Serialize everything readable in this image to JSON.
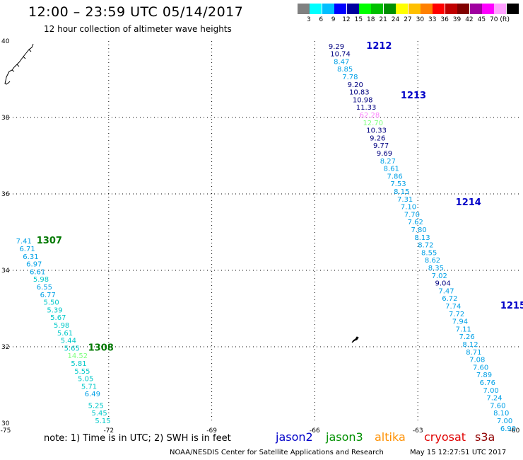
{
  "header": {
    "title": "12:00 – 23:59 UTC 05/14/2017",
    "subtitle": "12 hour collection of altimeter wave heights"
  },
  "scale": {
    "colors": [
      "#808080",
      "#00ffff",
      "#00bfff",
      "#0000ff",
      "#0000a0",
      "#00ff00",
      "#00c000",
      "#009000",
      "#ffff00",
      "#ffc000",
      "#ff8000",
      "#ff0000",
      "#c00000",
      "#800000",
      "#a000a0",
      "#ff00ff",
      "#ffa0ff",
      "#000000"
    ],
    "labels": [
      "3",
      "6",
      "9",
      "12",
      "15",
      "18",
      "21",
      "24",
      "27",
      "30",
      "33",
      "36",
      "39",
      "42",
      "45",
      "70",
      "(ft)"
    ]
  },
  "axes": {
    "x_ticks": [
      "-75",
      "-72",
      "-69",
      "-66",
      "-63",
      "-60"
    ],
    "y_ticks": [
      "40",
      "38",
      "36",
      "34",
      "32",
      "30"
    ]
  },
  "tracks": [
    {
      "label": "1212",
      "color": "#0000c8",
      "lon": -64.5,
      "lat": 39.8
    },
    {
      "label": "1213",
      "color": "#0000c8",
      "lon": -63.5,
      "lat": 38.5
    },
    {
      "label": "1214",
      "color": "#0000c8",
      "lon": -61.9,
      "lat": 35.7
    },
    {
      "label": "1215",
      "color": "#0000c8",
      "lon": -60.6,
      "lat": 33.0
    },
    {
      "label": "1307",
      "color": "#007800",
      "lon": -74.1,
      "lat": 34.7
    },
    {
      "label": "1308",
      "color": "#007800",
      "lon": -72.6,
      "lat": 31.9
    }
  ],
  "wave_heights": [
    {
      "v": "9.29",
      "color": "#000080",
      "lon": -65.6,
      "lat": 39.8
    },
    {
      "v": "10.74",
      "color": "#000080",
      "lon": -65.55,
      "lat": 39.6
    },
    {
      "v": "8.47",
      "color": "#00a0e6",
      "lon": -65.45,
      "lat": 39.4
    },
    {
      "v": "8.85",
      "color": "#00a0e6",
      "lon": -65.35,
      "lat": 39.2
    },
    {
      "v": "7.78",
      "color": "#00a0e6",
      "lon": -65.2,
      "lat": 39.0
    },
    {
      "v": "9.20",
      "color": "#000080",
      "lon": -65.05,
      "lat": 38.8
    },
    {
      "v": "10.83",
      "color": "#000080",
      "lon": -65.0,
      "lat": 38.6
    },
    {
      "v": "10.98",
      "color": "#000080",
      "lon": -64.9,
      "lat": 38.4
    },
    {
      "v": "11.33",
      "color": "#000080",
      "lon": -64.8,
      "lat": 38.2
    },
    {
      "v": "62.28",
      "color": "#ff80ff",
      "lon": -64.7,
      "lat": 38.0
    },
    {
      "v": "12.70",
      "color": "#80ff80",
      "lon": -64.6,
      "lat": 37.8
    },
    {
      "v": "10.33",
      "color": "#000080",
      "lon": -64.5,
      "lat": 37.6
    },
    {
      "v": "9.26",
      "color": "#000080",
      "lon": -64.4,
      "lat": 37.4
    },
    {
      "v": "9.77",
      "color": "#000080",
      "lon": -64.3,
      "lat": 37.2
    },
    {
      "v": "9.69",
      "color": "#000080",
      "lon": -64.2,
      "lat": 37.0
    },
    {
      "v": "8.27",
      "color": "#00a0e6",
      "lon": -64.1,
      "lat": 36.8
    },
    {
      "v": "8.61",
      "color": "#00a0e6",
      "lon": -64.0,
      "lat": 36.6
    },
    {
      "v": "7.86",
      "color": "#00a0e6",
      "lon": -63.9,
      "lat": 36.4
    },
    {
      "v": "7.53",
      "color": "#00a0e6",
      "lon": -63.8,
      "lat": 36.2
    },
    {
      "v": "8.15",
      "color": "#00a0e6",
      "lon": -63.7,
      "lat": 36.0
    },
    {
      "v": "7.31",
      "color": "#00a0e6",
      "lon": -63.6,
      "lat": 35.8
    },
    {
      "v": "7.10",
      "color": "#00a0e6",
      "lon": -63.5,
      "lat": 35.6
    },
    {
      "v": "7.70",
      "color": "#00a0e6",
      "lon": -63.4,
      "lat": 35.4
    },
    {
      "v": "7.62",
      "color": "#00a0e6",
      "lon": -63.3,
      "lat": 35.2
    },
    {
      "v": "7.80",
      "color": "#00a0e6",
      "lon": -63.2,
      "lat": 35.0
    },
    {
      "v": "8.13",
      "color": "#00a0e6",
      "lon": -63.1,
      "lat": 34.8
    },
    {
      "v": "8.72",
      "color": "#00a0e6",
      "lon": -63.0,
      "lat": 34.6
    },
    {
      "v": "8.55",
      "color": "#00a0e6",
      "lon": -62.9,
      "lat": 34.4
    },
    {
      "v": "8.62",
      "color": "#00a0e6",
      "lon": -62.8,
      "lat": 34.2
    },
    {
      "v": "8.35",
      "color": "#00a0e6",
      "lon": -62.7,
      "lat": 34.0
    },
    {
      "v": "7.02",
      "color": "#00a0e6",
      "lon": -62.6,
      "lat": 33.8
    },
    {
      "v": "9.04",
      "color": "#000080",
      "lon": -62.5,
      "lat": 33.6
    },
    {
      "v": "7.47",
      "color": "#00a0e6",
      "lon": -62.4,
      "lat": 33.4
    },
    {
      "v": "6.72",
      "color": "#00a0e6",
      "lon": -62.3,
      "lat": 33.2
    },
    {
      "v": "7.74",
      "color": "#00a0e6",
      "lon": -62.2,
      "lat": 33.0
    },
    {
      "v": "7.72",
      "color": "#00a0e6",
      "lon": -62.1,
      "lat": 32.8
    },
    {
      "v": "7.94",
      "color": "#00a0e6",
      "lon": -62.0,
      "lat": 32.6
    },
    {
      "v": "7.11",
      "color": "#00a0e6",
      "lon": -61.9,
      "lat": 32.4
    },
    {
      "v": "7.26",
      "color": "#00a0e6",
      "lon": -61.8,
      "lat": 32.2
    },
    {
      "v": "8.12",
      "color": "#00a0e6",
      "lon": -61.7,
      "lat": 32.0
    },
    {
      "v": "8.71",
      "color": "#00a0e6",
      "lon": -61.6,
      "lat": 31.8
    },
    {
      "v": "7.08",
      "color": "#00a0e6",
      "lon": -61.5,
      "lat": 31.6
    },
    {
      "v": "7.60",
      "color": "#00a0e6",
      "lon": -61.4,
      "lat": 31.4
    },
    {
      "v": "7.89",
      "color": "#00a0e6",
      "lon": -61.3,
      "lat": 31.2
    },
    {
      "v": "6.76",
      "color": "#00a0e6",
      "lon": -61.2,
      "lat": 31.0
    },
    {
      "v": "7.00",
      "color": "#00a0e6",
      "lon": -61.1,
      "lat": 30.8
    },
    {
      "v": "7.24",
      "color": "#00a0e6",
      "lon": -61.0,
      "lat": 30.6
    },
    {
      "v": "7.60",
      "color": "#00a0e6",
      "lon": -60.9,
      "lat": 30.4
    },
    {
      "v": "8.10",
      "color": "#00a0e6",
      "lon": -60.8,
      "lat": 30.2
    },
    {
      "v": "7.00",
      "color": "#00a0e6",
      "lon": -60.7,
      "lat": 30.0
    },
    {
      "v": "6.90",
      "color": "#00a0e6",
      "lon": -60.6,
      "lat": 29.8
    },
    {
      "v": "7.41",
      "color": "#00a0e6",
      "lon": -74.7,
      "lat": 34.7
    },
    {
      "v": "6.71",
      "color": "#00a0e6",
      "lon": -74.6,
      "lat": 34.5
    },
    {
      "v": "6.31",
      "color": "#00a0e6",
      "lon": -74.5,
      "lat": 34.3
    },
    {
      "v": "6.97",
      "color": "#00a0e6",
      "lon": -74.4,
      "lat": 34.1
    },
    {
      "v": "6.61",
      "color": "#00a0e6",
      "lon": -74.3,
      "lat": 33.9
    },
    {
      "v": "5.98",
      "color": "#00c8c8",
      "lon": -74.2,
      "lat": 33.7
    },
    {
      "v": "6.55",
      "color": "#00a0e6",
      "lon": -74.1,
      "lat": 33.5
    },
    {
      "v": "6.77",
      "color": "#00a0e6",
      "lon": -74.0,
      "lat": 33.3
    },
    {
      "v": "5.50",
      "color": "#00c8c8",
      "lon": -73.9,
      "lat": 33.1
    },
    {
      "v": "5.39",
      "color": "#00c8c8",
      "lon": -73.8,
      "lat": 32.9
    },
    {
      "v": "5.67",
      "color": "#00c8c8",
      "lon": -73.7,
      "lat": 32.7
    },
    {
      "v": "5.98",
      "color": "#00c8c8",
      "lon": -73.6,
      "lat": 32.5
    },
    {
      "v": "5.61",
      "color": "#00c8c8",
      "lon": -73.5,
      "lat": 32.3
    },
    {
      "v": "5.44",
      "color": "#00c8c8",
      "lon": -73.4,
      "lat": 32.1
    },
    {
      "v": "5.65",
      "color": "#00c8c8",
      "lon": -73.3,
      "lat": 31.9
    },
    {
      "v": "14.52",
      "color": "#80ff80",
      "lon": -73.2,
      "lat": 31.7
    },
    {
      "v": "5.81",
      "color": "#00c8c8",
      "lon": -73.1,
      "lat": 31.5
    },
    {
      "v": "5.55",
      "color": "#00c8c8",
      "lon": -73.0,
      "lat": 31.3
    },
    {
      "v": "5.05",
      "color": "#00c8c8",
      "lon": -72.9,
      "lat": 31.1
    },
    {
      "v": "5.71",
      "color": "#00c8c8",
      "lon": -72.8,
      "lat": 30.9
    },
    {
      "v": "6.49",
      "color": "#00a0e6",
      "lon": -72.7,
      "lat": 30.7
    },
    {
      "v": "5.25",
      "color": "#00c8c8",
      "lon": -72.6,
      "lat": 30.4
    },
    {
      "v": "5.45",
      "color": "#00c8c8",
      "lon": -72.5,
      "lat": 30.2
    },
    {
      "v": "5.15",
      "color": "#00c8c8",
      "lon": -72.4,
      "lat": 30.0
    }
  ],
  "note": "note:  1) Time is in UTC; 2) SWH is in feet",
  "satellites": [
    {
      "name": "jason2",
      "color": "#0000c8"
    },
    {
      "name": "jason3",
      "color": "#009000"
    },
    {
      "name": "altika",
      "color": "#ff9000"
    },
    {
      "name": "cryosat",
      "color": "#e00000"
    },
    {
      "name": "s3a",
      "color": "#900000"
    }
  ],
  "footer": {
    "agency": "NOAA/NESDIS Center for Satellite Applications and Research",
    "timestamp": "May 15 12:27:51 UTC 2017"
  }
}
